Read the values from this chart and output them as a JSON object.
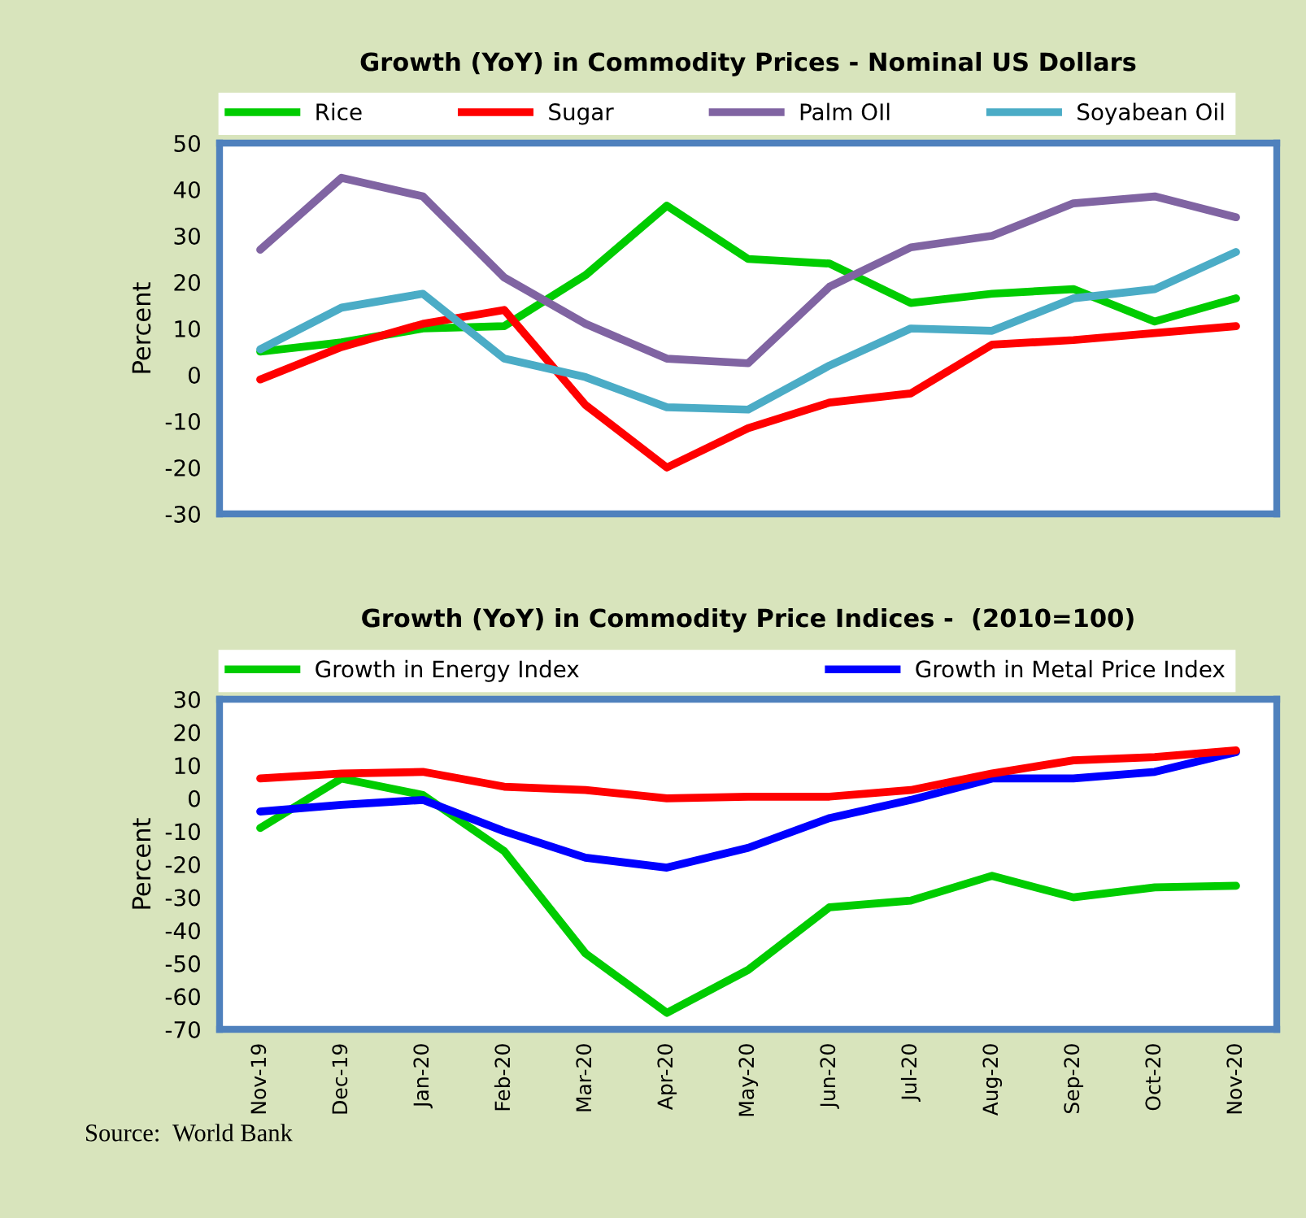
{
  "chart_data": [
    {
      "type": "line",
      "title": "Growth (YoY) in Commodity Prices - Nominal US Dollars",
      "ylabel": "Percent",
      "categories": [
        null,
        null,
        null,
        null,
        null,
        null,
        null,
        null,
        null,
        null,
        null,
        null,
        null
      ],
      "series": [
        {
          "name": "Rice",
          "color": "#00cc00",
          "values": [
            5,
            7,
            10,
            10.5,
            21.5,
            36.5,
            25,
            24,
            15.5,
            17.5,
            18.5,
            11.5,
            16.5
          ]
        },
        {
          "name": "Sugar",
          "color": "#ff0000",
          "values": [
            -1,
            6,
            11,
            14,
            -6.5,
            -20,
            -11.5,
            -6,
            -4,
            6.5,
            7.5,
            9,
            10.5
          ]
        },
        {
          "name": "Palm OIl",
          "color": "#8064a2",
          "values": [
            27,
            42.5,
            38.5,
            21,
            11,
            3.5,
            2.5,
            19,
            27.5,
            30,
            37,
            38.5,
            34
          ]
        },
        {
          "name": "Soyabean Oil",
          "color": "#4bacc6",
          "values": [
            5.5,
            14.5,
            17.5,
            3.5,
            -0.5,
            -7,
            -7.5,
            2,
            10,
            9.5,
            16.5,
            18.5,
            26.5
          ]
        }
      ],
      "ylim": [
        -30,
        50
      ],
      "yticks": [
        -30,
        -20,
        -10,
        0,
        10,
        20,
        30,
        40,
        50
      ],
      "legend": "top",
      "grid": false
    },
    {
      "type": "line",
      "title": "Growth (YoY) in Commodity Price Indices -  (2010=100)",
      "ylabel": "Percent",
      "categories": [
        "Nov-19",
        "Dec-19",
        "Jan-20",
        "Feb-20",
        "Mar-20",
        "Apr-20",
        "May-20",
        "Jun-20",
        "Jul-20",
        "Aug-20",
        "Sep-20",
        "Oct-20",
        "Nov-20"
      ],
      "series": [
        {
          "name": "Growth in Energy Index",
          "color": "#00cc00",
          "values": [
            -9,
            6,
            1,
            -16,
            -47,
            -65,
            -52,
            -33,
            -31,
            -23.5,
            -30,
            -27,
            -26.5
          ]
        },
        {
          "name": "Growth in Metal Price Index",
          "color": "#0000ff",
          "values": [
            -4,
            -2,
            -0.5,
            -10,
            -18,
            -21,
            -15,
            -6,
            -0.5,
            6,
            6,
            8,
            14
          ]
        },
        {
          "color": "#ff0000",
          "values": [
            6,
            7.5,
            8,
            3.5,
            2.5,
            0,
            0.5,
            0.5,
            2.5,
            7.5,
            11.5,
            12.5,
            14.5
          ]
        }
      ],
      "ylim": [
        -70,
        30
      ],
      "yticks": [
        -70,
        -60,
        -50,
        -40,
        -30,
        -20,
        -10,
        0,
        10,
        20,
        30
      ],
      "legend": "top",
      "grid": false,
      "annotations": [
        "Source:  World Bank"
      ]
    }
  ]
}
